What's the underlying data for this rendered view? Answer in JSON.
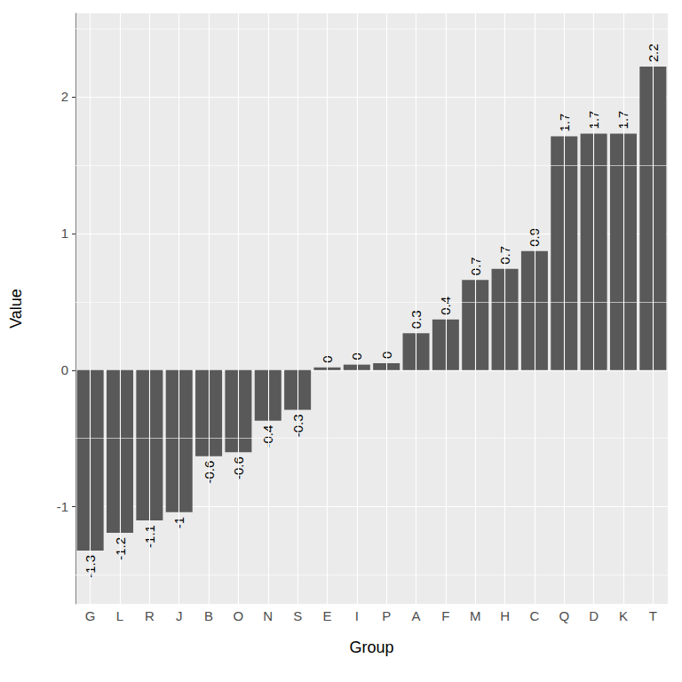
{
  "chart_data": {
    "type": "bar",
    "x_label": "Group",
    "y_label": "Value",
    "categories": [
      "G",
      "L",
      "R",
      "J",
      "B",
      "O",
      "N",
      "S",
      "E",
      "I",
      "P",
      "A",
      "F",
      "M",
      "H",
      "C",
      "Q",
      "D",
      "K",
      "T"
    ],
    "values": [
      -1.32,
      -1.19,
      -1.1,
      -1.04,
      -0.63,
      -0.6,
      -0.37,
      -0.29,
      0.02,
      0.04,
      0.05,
      0.27,
      0.37,
      0.66,
      0.74,
      0.87,
      1.71,
      1.73,
      1.73,
      2.22
    ],
    "value_labels": [
      "-1.3",
      "-1.2",
      "-1.1",
      "-1",
      "-0.6",
      "-0.6",
      "-0.4",
      "-0.3",
      "0",
      "0",
      "0",
      "0.3",
      "0.4",
      "0.7",
      "0.7",
      "0.9",
      "1.7",
      "1.7",
      "1.7",
      "2.2"
    ],
    "data_labels": true,
    "color": "#595959",
    "ylim": [
      -1.71,
      2.61
    ],
    "yticks": [
      -1,
      0,
      1,
      2
    ],
    "grid": true
  }
}
